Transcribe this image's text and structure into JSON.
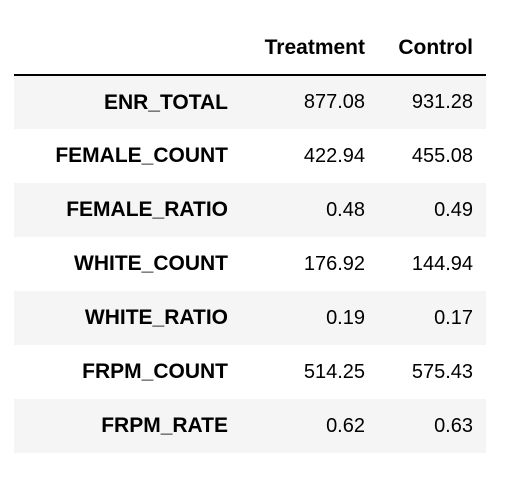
{
  "table": {
    "columns": [
      "Treatment",
      "Control"
    ],
    "rows": [
      {
        "label": "ENR_TOTAL",
        "values": [
          "877.08",
          "931.28"
        ]
      },
      {
        "label": "FEMALE_COUNT",
        "values": [
          "422.94",
          "455.08"
        ]
      },
      {
        "label": "FEMALE_RATIO",
        "values": [
          "0.48",
          "0.49"
        ]
      },
      {
        "label": "WHITE_COUNT",
        "values": [
          "176.92",
          "144.94"
        ]
      },
      {
        "label": "WHITE_RATIO",
        "values": [
          "0.19",
          "0.17"
        ]
      },
      {
        "label": "FRPM_COUNT",
        "values": [
          "514.25",
          "575.43"
        ]
      },
      {
        "label": "FRPM_RATE",
        "values": [
          "0.62",
          "0.63"
        ]
      }
    ]
  },
  "colors": {
    "stripe": "#f5f5f5",
    "header_rule": "#000000",
    "text": "#000000"
  }
}
